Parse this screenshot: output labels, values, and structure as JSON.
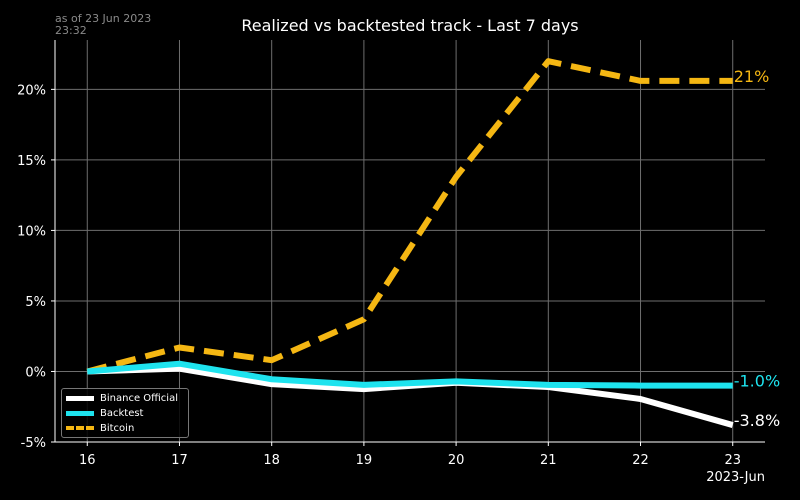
{
  "header": {
    "title": "Realized vs backtested track - Last 7 days",
    "as_of": "as of 23 Jun 2023\n23:32"
  },
  "x_axis_label": "2023-Jun",
  "chart_data": {
    "type": "line",
    "title": "Realized vs backtested track - Last 7 days",
    "xlabel": "2023-Jun",
    "ylabel": "",
    "x": [
      16,
      17,
      18,
      19,
      20,
      21,
      22,
      23
    ],
    "xlim": [
      15.65,
      23.35
    ],
    "ylim": [
      -5,
      23.5
    ],
    "x_ticks": [
      "16",
      "17",
      "18",
      "19",
      "20",
      "21",
      "22",
      "23"
    ],
    "y_ticks": [
      -5,
      0,
      5,
      10,
      15,
      20
    ],
    "y_tick_labels": [
      "-5%",
      "0%",
      "5%",
      "10%",
      "15%",
      "20%"
    ],
    "grid": true,
    "legend_position": "bottom-left",
    "series": [
      {
        "name": "Binance Official",
        "color": "#ffffff",
        "style": "solid",
        "values": [
          0,
          0.2,
          -0.9,
          -1.25,
          -0.8,
          -1.1,
          -1.95,
          -3.8
        ],
        "end_label": "-3.8%"
      },
      {
        "name": "Backtest",
        "color": "#1ee3ee",
        "style": "solid",
        "values": [
          0,
          0.55,
          -0.55,
          -0.95,
          -0.7,
          -0.95,
          -1.0,
          -1.0
        ],
        "end_label": "-1.0%"
      },
      {
        "name": "Bitcoin",
        "color": "#f5b713",
        "style": "dashed",
        "values": [
          0,
          1.7,
          0.8,
          3.7,
          13.8,
          22.0,
          20.6,
          20.6
        ],
        "end_label": "21%"
      }
    ]
  }
}
